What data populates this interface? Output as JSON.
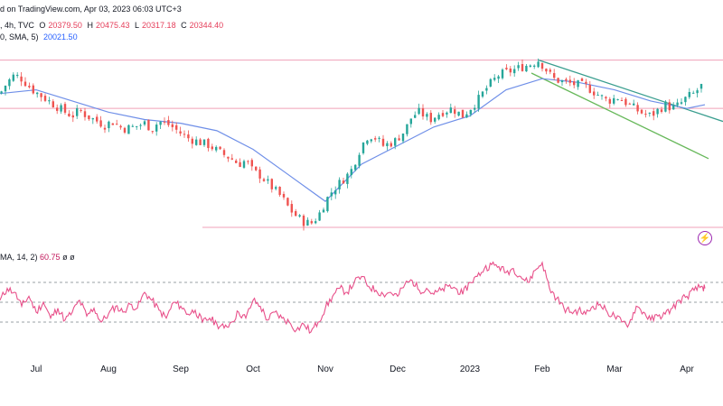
{
  "header": {
    "line1": {
      "source": "d on TradingView.com, Apr 03, 2023 06:03 UTC+3"
    },
    "line2": {
      "symbol_meta": ", 4h, TVC",
      "o_label": "O",
      "o_value": "20379.50",
      "h_label": "H",
      "h_value": "20475.43",
      "l_label": "L",
      "l_value": "20317.18",
      "c_label": "C",
      "c_value": "20344.40"
    },
    "line3": {
      "sma_label": "0, SMA, 5)",
      "sma_value": "20021.50"
    }
  },
  "rsi_header": {
    "label": "MA, 14, 2)",
    "value": "60.75",
    "extra": "ø ø"
  },
  "colors": {
    "up": "#26a69a",
    "down": "#ef5350",
    "sma": "#6f8fe8",
    "rsi": "#e8508a",
    "hline": "#f0a0b8",
    "channel_teal": "#3a9e8f",
    "channel_green": "#67b85a",
    "grid_dash": "#9aa0a6"
  },
  "icons": {
    "replay": "lightning-icon"
  },
  "chart_data": [
    {
      "type": "candlestick",
      "x_tick_labels": [
        "Jul",
        "Aug",
        "Sep",
        "Oct",
        "Nov",
        "Dec",
        "2023",
        "Feb",
        "Mar",
        "Apr"
      ],
      "x_ticks": [
        0.5,
        1.5,
        2.5,
        3.5,
        4.5,
        5.5,
        6.5,
        7.5,
        8.5,
        9.5
      ],
      "xlim": [
        0,
        10
      ],
      "ylim": [
        0,
        100
      ],
      "close_series": [
        [
          0.0,
          72
        ],
        [
          0.1,
          78
        ],
        [
          0.2,
          82
        ],
        [
          0.3,
          80
        ],
        [
          0.45,
          74
        ],
        [
          0.6,
          70
        ],
        [
          0.75,
          66
        ],
        [
          0.9,
          62
        ],
        [
          1.0,
          60
        ],
        [
          1.1,
          63
        ],
        [
          1.2,
          60
        ],
        [
          1.3,
          58
        ],
        [
          1.45,
          55
        ],
        [
          1.55,
          57
        ],
        [
          1.7,
          53
        ],
        [
          1.85,
          54
        ],
        [
          2.0,
          56
        ],
        [
          2.1,
          53
        ],
        [
          2.2,
          57
        ],
        [
          2.35,
          55
        ],
        [
          2.45,
          52
        ],
        [
          2.6,
          48
        ],
        [
          2.75,
          46
        ],
        [
          2.9,
          44
        ],
        [
          3.05,
          40
        ],
        [
          3.2,
          37
        ],
        [
          3.3,
          34
        ],
        [
          3.4,
          36
        ],
        [
          3.5,
          30
        ],
        [
          3.6,
          28
        ],
        [
          3.7,
          24
        ],
        [
          3.8,
          20
        ],
        [
          3.9,
          16
        ],
        [
          4.0,
          10
        ],
        [
          4.1,
          6
        ],
        [
          4.2,
          3
        ],
        [
          4.3,
          2
        ],
        [
          4.4,
          6
        ],
        [
          4.5,
          14
        ],
        [
          4.6,
          20
        ],
        [
          4.7,
          24
        ],
        [
          4.85,
          30
        ],
        [
          5.0,
          44
        ],
        [
          5.1,
          50
        ],
        [
          5.2,
          48
        ],
        [
          5.3,
          44
        ],
        [
          5.45,
          46
        ],
        [
          5.6,
          52
        ],
        [
          5.7,
          60
        ],
        [
          5.8,
          62
        ],
        [
          5.95,
          58
        ],
        [
          6.1,
          62
        ],
        [
          6.25,
          64
        ],
        [
          6.4,
          60
        ],
        [
          6.6,
          68
        ],
        [
          6.75,
          76
        ],
        [
          6.9,
          82
        ],
        [
          7.05,
          84
        ],
        [
          7.2,
          86
        ],
        [
          7.35,
          88
        ],
        [
          7.45,
          90
        ],
        [
          7.55,
          85
        ],
        [
          7.65,
          80
        ],
        [
          7.8,
          78
        ],
        [
          7.95,
          77
        ],
        [
          8.1,
          76
        ],
        [
          8.25,
          72
        ],
        [
          8.4,
          68
        ],
        [
          8.55,
          70
        ],
        [
          8.7,
          66
        ],
        [
          8.85,
          62
        ],
        [
          9.0,
          60
        ],
        [
          9.1,
          63
        ],
        [
          9.2,
          66
        ],
        [
          9.3,
          64
        ],
        [
          9.4,
          66
        ],
        [
          9.5,
          70
        ],
        [
          9.6,
          72
        ],
        [
          9.7,
          76
        ]
      ],
      "sma_series": [
        [
          0.0,
          72
        ],
        [
          0.5,
          74
        ],
        [
          1.0,
          68
        ],
        [
          1.5,
          62
        ],
        [
          2.0,
          58
        ],
        [
          2.5,
          56
        ],
        [
          3.0,
          52
        ],
        [
          3.5,
          42
        ],
        [
          4.0,
          28
        ],
        [
          4.5,
          14
        ],
        [
          4.75,
          24
        ],
        [
          5.0,
          34
        ],
        [
          5.5,
          44
        ],
        [
          6.0,
          54
        ],
        [
          6.5,
          60
        ],
        [
          7.0,
          74
        ],
        [
          7.5,
          80
        ],
        [
          8.0,
          78
        ],
        [
          8.5,
          74
        ],
        [
          9.0,
          68
        ],
        [
          9.5,
          64
        ],
        [
          9.75,
          66
        ]
      ],
      "horizontal_lines": [
        90,
        64,
        0
      ],
      "channel_lines": [
        {
          "color": "teal",
          "from": [
            7.45,
            90
          ],
          "to": [
            10.0,
            57
          ]
        },
        {
          "color": "green",
          "from": [
            7.35,
            83
          ],
          "to": [
            9.8,
            37
          ]
        }
      ]
    },
    {
      "type": "line",
      "name": "RSI",
      "xlim": [
        0,
        10
      ],
      "ylim": [
        0,
        100
      ],
      "levels": [
        70,
        50,
        30
      ],
      "values": [
        [
          0.0,
          52
        ],
        [
          0.1,
          64
        ],
        [
          0.2,
          60
        ],
        [
          0.3,
          46
        ],
        [
          0.4,
          56
        ],
        [
          0.5,
          40
        ],
        [
          0.6,
          50
        ],
        [
          0.7,
          34
        ],
        [
          0.8,
          44
        ],
        [
          0.9,
          32
        ],
        [
          1.0,
          40
        ],
        [
          1.1,
          52
        ],
        [
          1.2,
          36
        ],
        [
          1.3,
          44
        ],
        [
          1.4,
          30
        ],
        [
          1.5,
          38
        ],
        [
          1.6,
          46
        ],
        [
          1.7,
          40
        ],
        [
          1.8,
          48
        ],
        [
          1.9,
          44
        ],
        [
          2.0,
          60
        ],
        [
          2.1,
          52
        ],
        [
          2.2,
          42
        ],
        [
          2.3,
          34
        ],
        [
          2.4,
          50
        ],
        [
          2.5,
          46
        ],
        [
          2.6,
          38
        ],
        [
          2.7,
          42
        ],
        [
          2.8,
          30
        ],
        [
          2.9,
          34
        ],
        [
          3.0,
          28
        ],
        [
          3.1,
          24
        ],
        [
          3.2,
          30
        ],
        [
          3.3,
          40
        ],
        [
          3.4,
          34
        ],
        [
          3.5,
          52
        ],
        [
          3.6,
          46
        ],
        [
          3.7,
          32
        ],
        [
          3.8,
          40
        ],
        [
          3.9,
          34
        ],
        [
          4.0,
          30
        ],
        [
          4.1,
          22
        ],
        [
          4.2,
          28
        ],
        [
          4.3,
          20
        ],
        [
          4.4,
          30
        ],
        [
          4.5,
          44
        ],
        [
          4.6,
          56
        ],
        [
          4.7,
          64
        ],
        [
          4.8,
          60
        ],
        [
          4.9,
          70
        ],
        [
          5.0,
          76
        ],
        [
          5.1,
          66
        ],
        [
          5.2,
          62
        ],
        [
          5.3,
          58
        ],
        [
          5.4,
          60
        ],
        [
          5.5,
          56
        ],
        [
          5.6,
          68
        ],
        [
          5.7,
          72
        ],
        [
          5.8,
          62
        ],
        [
          5.9,
          64
        ],
        [
          6.0,
          58
        ],
        [
          6.1,
          62
        ],
        [
          6.2,
          66
        ],
        [
          6.3,
          64
        ],
        [
          6.4,
          58
        ],
        [
          6.5,
          70
        ],
        [
          6.6,
          76
        ],
        [
          6.7,
          84
        ],
        [
          6.8,
          88
        ],
        [
          6.9,
          86
        ],
        [
          7.0,
          80
        ],
        [
          7.1,
          84
        ],
        [
          7.2,
          76
        ],
        [
          7.3,
          70
        ],
        [
          7.4,
          82
        ],
        [
          7.5,
          90
        ],
        [
          7.6,
          64
        ],
        [
          7.7,
          54
        ],
        [
          7.8,
          44
        ],
        [
          7.9,
          40
        ],
        [
          8.0,
          42
        ],
        [
          8.1,
          38
        ],
        [
          8.2,
          46
        ],
        [
          8.3,
          48
        ],
        [
          8.4,
          40
        ],
        [
          8.5,
          36
        ],
        [
          8.6,
          30
        ],
        [
          8.7,
          28
        ],
        [
          8.8,
          46
        ],
        [
          8.9,
          40
        ],
        [
          9.0,
          32
        ],
        [
          9.1,
          36
        ],
        [
          9.2,
          38
        ],
        [
          9.3,
          44
        ],
        [
          9.4,
          52
        ],
        [
          9.5,
          56
        ],
        [
          9.6,
          62
        ],
        [
          9.7,
          66
        ],
        [
          9.75,
          64
        ]
      ]
    }
  ]
}
